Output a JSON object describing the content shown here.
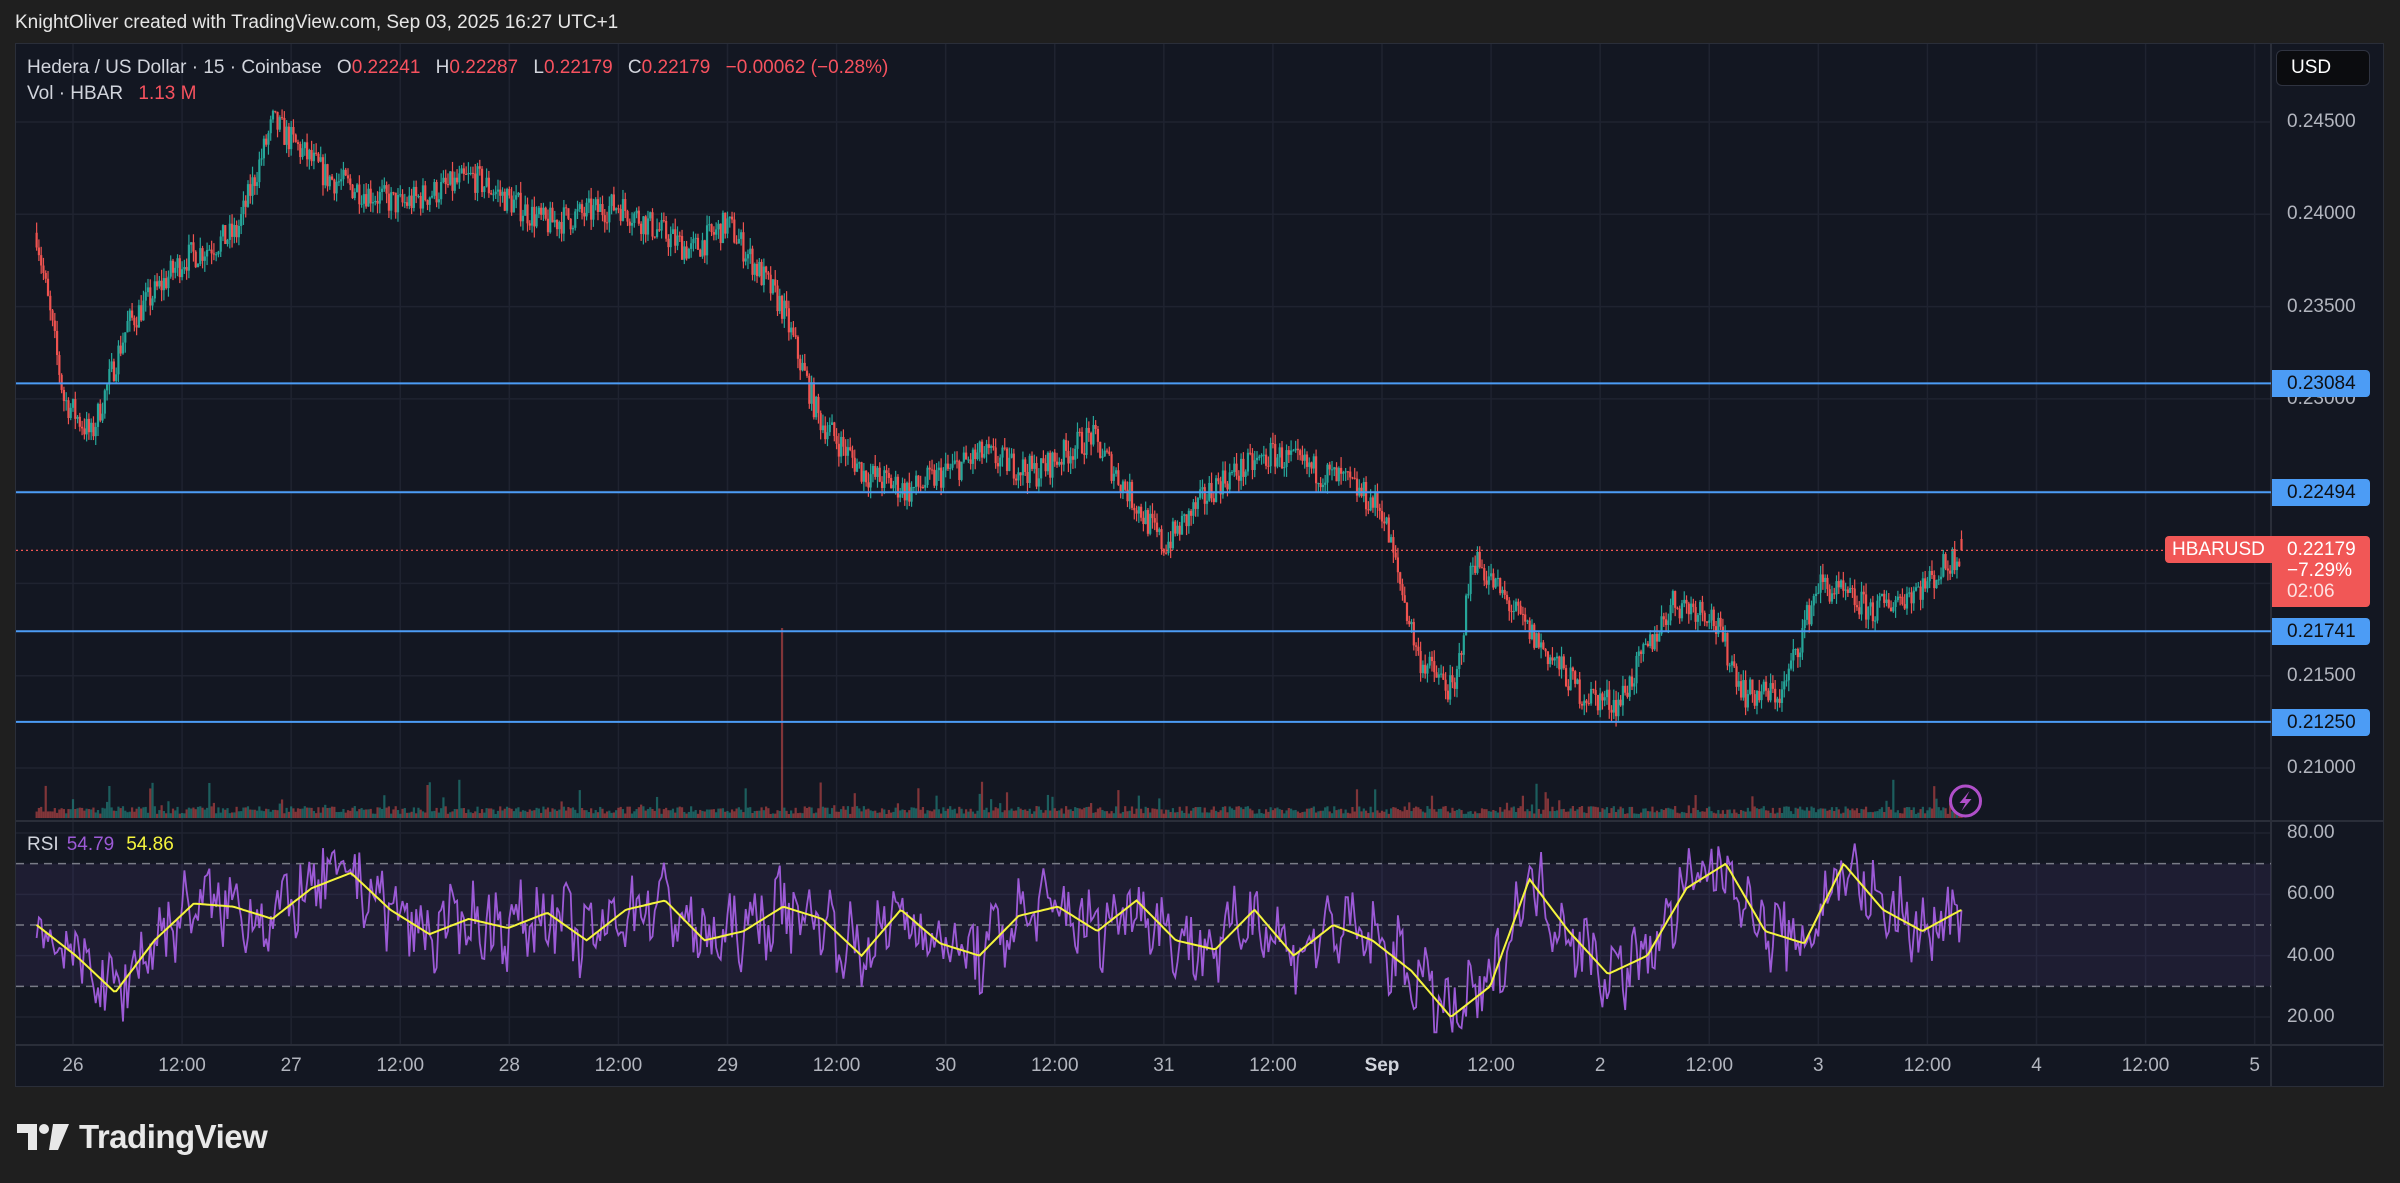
{
  "credit": "KnightOliver created with TradingView.com, Sep 03, 2025 16:27 UTC+1",
  "legend": {
    "symbol_desc": "Hedera / US Dollar · 15 · Coinbase",
    "o_label": "O",
    "o_value": "0.22241",
    "h_label": "H",
    "h_value": "0.22287",
    "l_label": "L",
    "l_value": "0.22179",
    "c_label": "C",
    "c_value": "0.22179",
    "change": "−0.00062 (−0.28%)",
    "vol_label": "Vol · HBAR",
    "vol_value": "1.13 M"
  },
  "rsi_legend": {
    "label": "RSI",
    "rsi_value": "54.79",
    "ma_value": "54.86"
  },
  "currency_button": "USD",
  "price_axis": [
    "0.24500",
    "0.24000",
    "0.23500",
    "0.23000",
    "0.22500",
    "0.22000",
    "0.21500",
    "0.21000"
  ],
  "rsi_axis": [
    "80.00",
    "60.00",
    "40.00",
    "20.00"
  ],
  "horizontal_levels": [
    "0.23084",
    "0.22494",
    "0.21741",
    "0.21250"
  ],
  "current_price": {
    "symbol": "HBARUSD",
    "price": "0.22179",
    "change_pct": "−7.29%",
    "countdown": "02:06"
  },
  "time_axis": [
    {
      "label": "26",
      "bold": false
    },
    {
      "label": "12:00",
      "bold": false
    },
    {
      "label": "27",
      "bold": false
    },
    {
      "label": "12:00",
      "bold": false
    },
    {
      "label": "28",
      "bold": false
    },
    {
      "label": "12:00",
      "bold": false
    },
    {
      "label": "29",
      "bold": false
    },
    {
      "label": "12:00",
      "bold": false
    },
    {
      "label": "30",
      "bold": false
    },
    {
      "label": "12:00",
      "bold": false
    },
    {
      "label": "31",
      "bold": false
    },
    {
      "label": "12:00",
      "bold": false
    },
    {
      "label": "Sep",
      "bold": true
    },
    {
      "label": "12:00",
      "bold": false
    },
    {
      "label": "2",
      "bold": false
    },
    {
      "label": "12:00",
      "bold": false
    },
    {
      "label": "3",
      "bold": false
    },
    {
      "label": "12:00",
      "bold": false
    },
    {
      "label": "4",
      "bold": false
    },
    {
      "label": "12:00",
      "bold": false
    },
    {
      "label": "5",
      "bold": false
    }
  ],
  "logo_text": "TradingView",
  "colors": {
    "up": "#26a69a",
    "down": "#ef5350",
    "level": "#4c9cf5",
    "rsi": "#9c5ad6",
    "rsi_ma": "#f5f53d",
    "current": "#f15756",
    "background": "#131722"
  },
  "chart_data": [
    {
      "type": "candlestick",
      "title": "Hedera / US Dollar · 15 · Coinbase",
      "timeframe": "15m",
      "ylabel": "USD",
      "ylim": [
        0.2085,
        0.2475
      ],
      "x_ticks": [
        "26",
        "12:00",
        "27",
        "12:00",
        "28",
        "12:00",
        "29",
        "12:00",
        "30",
        "12:00",
        "31",
        "12:00",
        "Sep",
        "12:00",
        "2",
        "12:00",
        "3",
        "12:00",
        "4",
        "12:00",
        "5"
      ],
      "y_ticks": [
        0.245,
        0.24,
        0.235,
        0.23,
        0.225,
        0.22,
        0.215,
        0.21
      ],
      "approx_close_path": [
        {
          "t": "Aug 25 20:00",
          "p": 0.239
        },
        {
          "t": "Aug 25 23:00",
          "p": 0.23
        },
        {
          "t": "Aug 26 02:00",
          "p": 0.228
        },
        {
          "t": "Aug 26 06:00",
          "p": 0.234
        },
        {
          "t": "Aug 26 12:00",
          "p": 0.2375
        },
        {
          "t": "Aug 26 18:00",
          "p": 0.239
        },
        {
          "t": "Aug 26 22:00",
          "p": 0.245
        },
        {
          "t": "Aug 27 04:00",
          "p": 0.242
        },
        {
          "t": "Aug 27 12:00",
          "p": 0.2405
        },
        {
          "t": "Aug 27 20:00",
          "p": 0.242
        },
        {
          "t": "Aug 28 04:00",
          "p": 0.2395
        },
        {
          "t": "Aug 28 12:00",
          "p": 0.2405
        },
        {
          "t": "Aug 28 20:00",
          "p": 0.238
        },
        {
          "t": "Aug 29 00:00",
          "p": 0.2395
        },
        {
          "t": "Aug 29 06:00",
          "p": 0.235
        },
        {
          "t": "Aug 29 10:00",
          "p": 0.229
        },
        {
          "t": "Aug 29 15:00",
          "p": 0.226
        },
        {
          "t": "Aug 29 20:00",
          "p": 0.225
        },
        {
          "t": "Aug 30 04:00",
          "p": 0.227
        },
        {
          "t": "Aug 30 10:00",
          "p": 0.226
        },
        {
          "t": "Aug 30 16:00",
          "p": 0.228
        },
        {
          "t": "Aug 31 00:00",
          "p": 0.222
        },
        {
          "t": "Aug 31 06:00",
          "p": 0.2255
        },
        {
          "t": "Aug 31 12:00",
          "p": 0.227
        },
        {
          "t": "Aug 31 20:00",
          "p": 0.2255
        },
        {
          "t": "Sep 01 00:00",
          "p": 0.224
        },
        {
          "t": "Sep 01 04:00",
          "p": 0.216
        },
        {
          "t": "Sep 01 08:00",
          "p": 0.214
        },
        {
          "t": "Sep 01 10:00",
          "p": 0.2215
        },
        {
          "t": "Sep 01 16:00",
          "p": 0.2175
        },
        {
          "t": "Sep 01 22:00",
          "p": 0.214
        },
        {
          "t": "Sep 02 02:00",
          "p": 0.2135
        },
        {
          "t": "Sep 02 08:00",
          "p": 0.219
        },
        {
          "t": "Sep 02 12:00",
          "p": 0.2185
        },
        {
          "t": "Sep 02 16:00",
          "p": 0.214
        },
        {
          "t": "Sep 02 20:00",
          "p": 0.214
        },
        {
          "t": "Sep 03 00:00",
          "p": 0.22
        },
        {
          "t": "Sep 03 06:00",
          "p": 0.2185
        },
        {
          "t": "Sep 03 12:00",
          "p": 0.22
        },
        {
          "t": "Sep 03 15:45",
          "p": 0.22179
        }
      ],
      "horizontal_lines": [
        0.23084,
        0.22494,
        0.21741,
        0.2125
      ],
      "last": {
        "open": 0.22241,
        "high": 0.22287,
        "low": 0.22179,
        "close": 0.22179,
        "change": -0.00062,
        "change_pct": -0.28
      },
      "daily_change_pct": -7.29,
      "volume": {
        "label": "Vol · HBAR",
        "last": "1.13 M",
        "spike_at": "Aug 29 ~06:00"
      }
    },
    {
      "type": "line",
      "title": "RSI",
      "ylim": [
        10,
        85
      ],
      "y_ticks": [
        80,
        60,
        40,
        20
      ],
      "bands": {
        "upper": 70,
        "middle": 50,
        "lower": 30
      },
      "series": [
        {
          "name": "RSI",
          "last": 54.79,
          "color": "#9c5ad6"
        },
        {
          "name": "RSI MA",
          "last": 54.86,
          "color": "#f5f53d"
        }
      ],
      "approx_ma_path": [
        50,
        40,
        28,
        45,
        57,
        56,
        52,
        62,
        67,
        55,
        47,
        52,
        49,
        54,
        45,
        55,
        58,
        45,
        48,
        56,
        52,
        40,
        55,
        44,
        40,
        53,
        56,
        48,
        58,
        45,
        42,
        55,
        40,
        50,
        45,
        35,
        20,
        30,
        65,
        48,
        34,
        40,
        62,
        70,
        48,
        44,
        70,
        55,
        48,
        55
      ]
    }
  ]
}
